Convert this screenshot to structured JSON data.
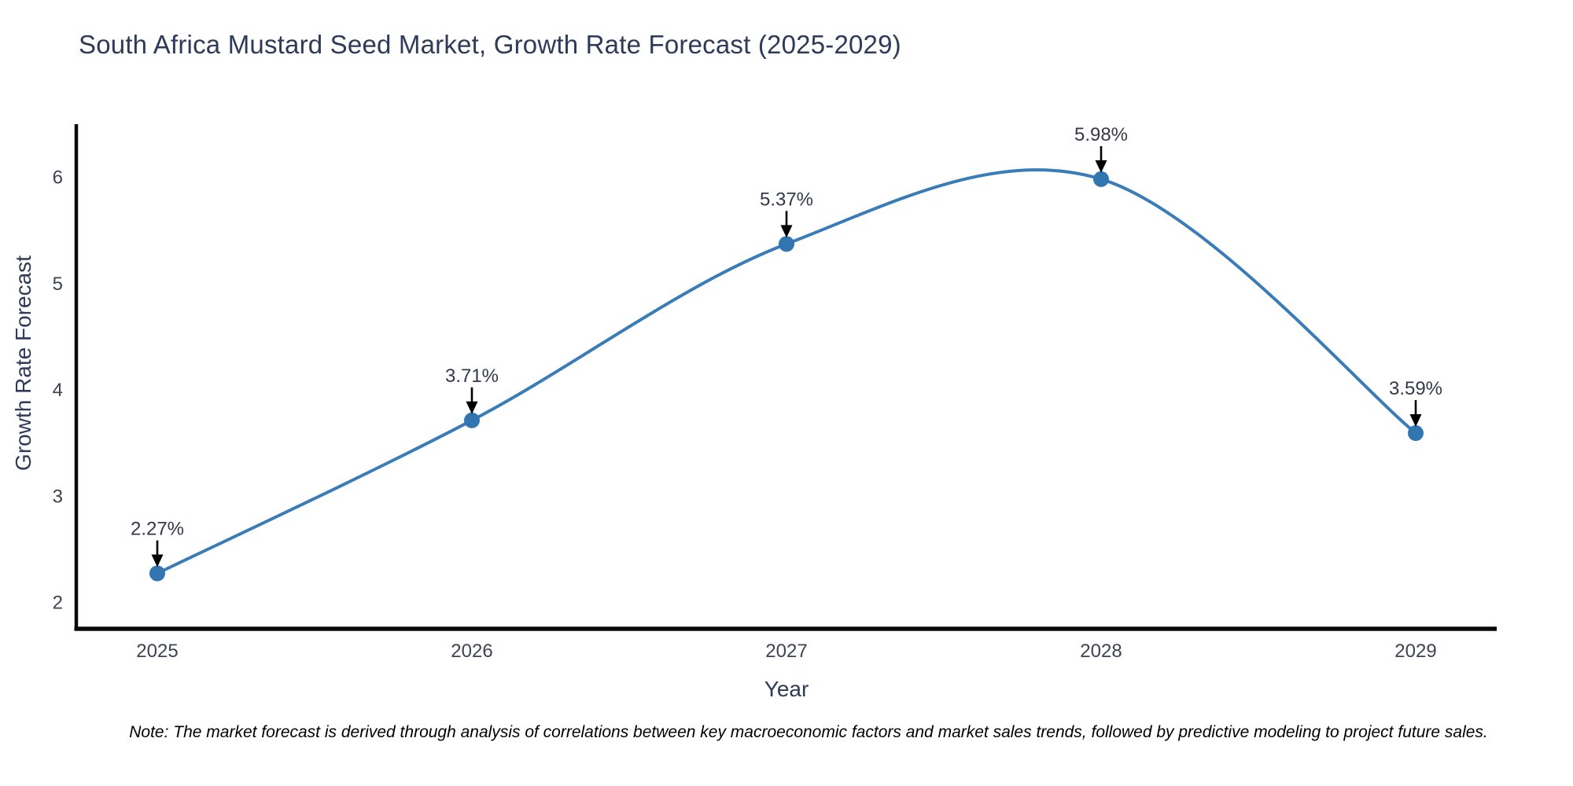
{
  "chart_data": {
    "type": "line",
    "curve": "spline",
    "title": "South Africa Mustard Seed Market, Growth Rate Forecast (2025-2029)",
    "xlabel": "Year",
    "ylabel": "Growth Rate Forecast",
    "categories": [
      "2025",
      "2026",
      "2027",
      "2028",
      "2029"
    ],
    "values": [
      2.27,
      3.71,
      5.37,
      5.98,
      3.59
    ],
    "point_labels": [
      "2.27%",
      "3.71%",
      "5.37%",
      "5.98%",
      "3.59%"
    ],
    "yticks": [
      2,
      3,
      4,
      5,
      6
    ],
    "ylim": [
      1.75,
      6.45
    ],
    "grid": false,
    "legend": false,
    "line_color": "#3a7cb8",
    "marker_color": "#3276b1",
    "axis_color": "#0a0a0a",
    "arrow_color": "#000000",
    "note": "Note: The market forecast is derived through analysis of correlations between key macroeconomic factors and market sales trends, followed by predictive modeling to project future sales."
  }
}
